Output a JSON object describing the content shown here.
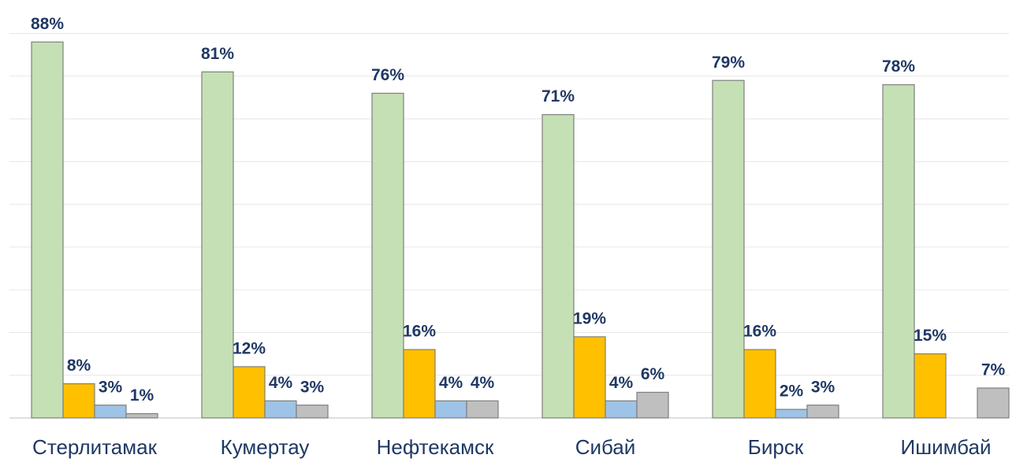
{
  "chart_data": {
    "type": "bar",
    "categories": [
      "Стерлитамак",
      "Кумертау",
      "Нефтекамск",
      "Сибай",
      "Бирск",
      "Ишимбай"
    ],
    "series": [
      {
        "color": "#c5e0b4",
        "values": [
          88,
          81,
          76,
          71,
          79,
          78
        ],
        "value_labels": [
          "88%",
          "81%",
          "76%",
          "71%",
          "79%",
          "78%"
        ]
      },
      {
        "color": "#ffc000",
        "values": [
          8,
          12,
          16,
          19,
          16,
          15
        ],
        "value_labels": [
          "8%",
          "12%",
          "16%",
          "19%",
          "16%",
          "15%"
        ]
      },
      {
        "color": "#9dc3e6",
        "values": [
          3,
          4,
          4,
          4,
          2,
          null
        ],
        "value_labels": [
          "3%",
          "4%",
          "4%",
          "4%",
          "2%",
          null
        ]
      },
      {
        "color": "#bfbfbf",
        "values": [
          1,
          3,
          4,
          6,
          3,
          7
        ],
        "value_labels": [
          "1%",
          "3%",
          "4%",
          "6%",
          "3%",
          "7%"
        ]
      }
    ],
    "ylim": [
      0,
      90
    ],
    "yticks": [
      0,
      10,
      20,
      30,
      40,
      50,
      60,
      70,
      80,
      90
    ],
    "grid": true
  }
}
